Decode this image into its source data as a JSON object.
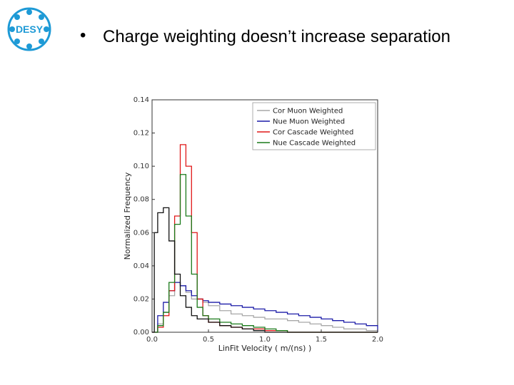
{
  "logo": {
    "text": "DESY",
    "color": "#1e9ad6"
  },
  "slide": {
    "bullet_char": "•",
    "bullet_text": "Charge weighting doesn’t increase separation"
  },
  "chart_data": {
    "type": "histogram-step",
    "xlabel": "LinFit Velocity ( m/(ns) )",
    "ylabel": "Normalized Frequency",
    "xlim": [
      0.0,
      2.0
    ],
    "ylim": [
      0.0,
      0.14
    ],
    "xticks": [
      "0.0",
      "0.5",
      "1.0",
      "1.5",
      "2.0"
    ],
    "yticks": [
      "0.00",
      "0.02",
      "0.04",
      "0.06",
      "0.08",
      "0.10",
      "0.12",
      "0.14"
    ],
    "legend_position": "top-right",
    "series": [
      {
        "name": "Cor Muon Weighted",
        "color": "#a8a8a8",
        "bins": [
          [
            0.0,
            0.0
          ],
          [
            0.05,
            0.005
          ],
          [
            0.1,
            0.012
          ],
          [
            0.15,
            0.022
          ],
          [
            0.2,
            0.03
          ],
          [
            0.25,
            0.028
          ],
          [
            0.3,
            0.024
          ],
          [
            0.35,
            0.02
          ],
          [
            0.4,
            0.02
          ],
          [
            0.45,
            0.018
          ],
          [
            0.5,
            0.016
          ],
          [
            0.6,
            0.013
          ],
          [
            0.7,
            0.011
          ],
          [
            0.8,
            0.01
          ],
          [
            0.9,
            0.009
          ],
          [
            1.0,
            0.008
          ],
          [
            1.1,
            0.008
          ],
          [
            1.2,
            0.007
          ],
          [
            1.3,
            0.006
          ],
          [
            1.4,
            0.005
          ],
          [
            1.5,
            0.004
          ],
          [
            1.6,
            0.003
          ],
          [
            1.7,
            0.002
          ],
          [
            1.8,
            0.002
          ],
          [
            1.9,
            0.001
          ],
          [
            2.0,
            0.0
          ]
        ]
      },
      {
        "name": "Nue Muon Weighted",
        "color": "#1c1ca8",
        "bins": [
          [
            0.0,
            0.0
          ],
          [
            0.05,
            0.01
          ],
          [
            0.1,
            0.018
          ],
          [
            0.15,
            0.025
          ],
          [
            0.2,
            0.03
          ],
          [
            0.25,
            0.028
          ],
          [
            0.3,
            0.025
          ],
          [
            0.35,
            0.022
          ],
          [
            0.4,
            0.02
          ],
          [
            0.45,
            0.019
          ],
          [
            0.5,
            0.018
          ],
          [
            0.6,
            0.017
          ],
          [
            0.7,
            0.016
          ],
          [
            0.8,
            0.015
          ],
          [
            0.9,
            0.014
          ],
          [
            1.0,
            0.013
          ],
          [
            1.1,
            0.012
          ],
          [
            1.2,
            0.011
          ],
          [
            1.3,
            0.01
          ],
          [
            1.4,
            0.009
          ],
          [
            1.5,
            0.008
          ],
          [
            1.6,
            0.007
          ],
          [
            1.7,
            0.006
          ],
          [
            1.8,
            0.005
          ],
          [
            1.9,
            0.004
          ],
          [
            2.0,
            0.0
          ]
        ]
      },
      {
        "name": "Cor Cascade Weighted",
        "color": "#e01818",
        "bins": [
          [
            0.0,
            0.0
          ],
          [
            0.05,
            0.003
          ],
          [
            0.1,
            0.01
          ],
          [
            0.15,
            0.025
          ],
          [
            0.2,
            0.07
          ],
          [
            0.25,
            0.113
          ],
          [
            0.3,
            0.1
          ],
          [
            0.35,
            0.06
          ],
          [
            0.4,
            0.02
          ],
          [
            0.45,
            0.01
          ],
          [
            0.5,
            0.006
          ],
          [
            0.6,
            0.004
          ],
          [
            0.7,
            0.003
          ],
          [
            0.8,
            0.002
          ],
          [
            0.9,
            0.002
          ],
          [
            1.0,
            0.001
          ],
          [
            1.1,
            0.001
          ],
          [
            1.2,
            0.0
          ],
          [
            2.0,
            0.0
          ]
        ]
      },
      {
        "name": "Nue Cascade Weighted",
        "color": "#1a7a1a",
        "bins": [
          [
            0.0,
            0.0
          ],
          [
            0.05,
            0.004
          ],
          [
            0.1,
            0.012
          ],
          [
            0.15,
            0.03
          ],
          [
            0.2,
            0.065
          ],
          [
            0.25,
            0.095
          ],
          [
            0.3,
            0.07
          ],
          [
            0.35,
            0.035
          ],
          [
            0.4,
            0.015
          ],
          [
            0.45,
            0.01
          ],
          [
            0.5,
            0.008
          ],
          [
            0.6,
            0.006
          ],
          [
            0.7,
            0.005
          ],
          [
            0.8,
            0.004
          ],
          [
            0.9,
            0.003
          ],
          [
            1.0,
            0.002
          ],
          [
            1.1,
            0.001
          ],
          [
            1.2,
            0.0
          ],
          [
            2.0,
            0.0
          ]
        ]
      },
      {
        "name": "Black",
        "color": "#111111",
        "hidden_legend": true,
        "bins": [
          [
            0.0,
            0.0
          ],
          [
            0.02,
            0.06
          ],
          [
            0.05,
            0.072
          ],
          [
            0.1,
            0.075
          ],
          [
            0.15,
            0.055
          ],
          [
            0.2,
            0.035
          ],
          [
            0.25,
            0.022
          ],
          [
            0.3,
            0.015
          ],
          [
            0.35,
            0.01
          ],
          [
            0.4,
            0.008
          ],
          [
            0.5,
            0.006
          ],
          [
            0.6,
            0.004
          ],
          [
            0.7,
            0.003
          ],
          [
            0.8,
            0.002
          ],
          [
            0.9,
            0.001
          ],
          [
            1.0,
            0.0
          ],
          [
            2.0,
            0.0
          ]
        ]
      }
    ]
  }
}
